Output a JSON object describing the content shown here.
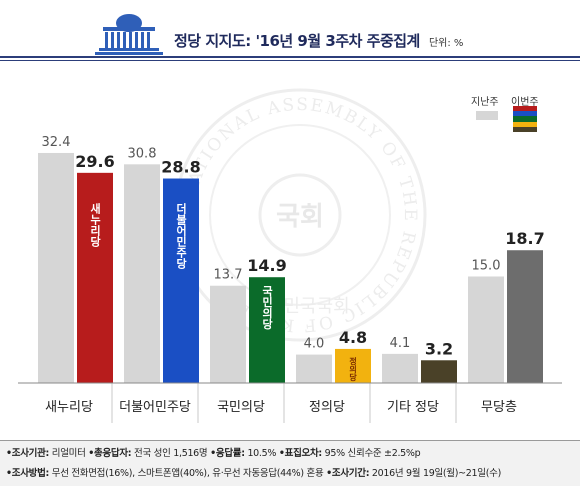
{
  "header": {
    "title": "정당 지지도: '16년 9월 3주차 주중집계",
    "unit": "단위: %"
  },
  "legend": {
    "prev_label": "지난주",
    "curr_label": "이번주"
  },
  "watermark": {
    "ring_text": "NATIONAL ASSEMBLY OF THE REPUBLIC OF KOREA",
    "center_text": "국회",
    "ring_text_kr": "대한민국국회"
  },
  "colors": {
    "prev_bar": "#d6d6d6",
    "saenuri": "#b71c1c",
    "minju": "#1a4fc4",
    "kukmin": "#0b6b2a",
    "jeongui": "#f2b20f",
    "other": "#4a4128",
    "none": "#6d6d6d"
  },
  "chart_data": {
    "type": "bar",
    "title": "정당 지지도: '16년 9월 3주차 주중집계",
    "unit": "%",
    "categories": [
      "새누리당",
      "더불어민주당",
      "국민의당",
      "정의당",
      "기타 정당",
      "무당층"
    ],
    "series": [
      {
        "name": "지난주",
        "values": [
          32.4,
          30.8,
          13.7,
          4.0,
          4.1,
          15.0
        ]
      },
      {
        "name": "이번주",
        "values": [
          29.6,
          28.8,
          14.9,
          4.8,
          3.2,
          18.7
        ]
      }
    ],
    "value_labels_prev": [
      "32.4",
      "30.8",
      "13.7",
      "4.0",
      "4.1",
      "15.0"
    ],
    "value_labels_curr": [
      "29.6",
      "28.8",
      "14.9",
      "4.8",
      "3.2",
      "18.7"
    ],
    "bar_logos": [
      "새누리당",
      "더불어민주당",
      "국민의당",
      "정의당",
      "",
      ""
    ],
    "ylim": [
      0,
      34
    ],
    "legend_position": "top-right"
  },
  "footer": {
    "row1": {
      "agency_label": "•조사기관:",
      "agency": "리얼미터",
      "respondents_label": "•총응답자:",
      "respondents": "전국 성인 1,516명",
      "response_label": "•응답률:",
      "response": "10.5%",
      "error_label": "•표집오차:",
      "error": "95% 신뢰수준 ±2.5%p"
    },
    "row2": {
      "method_label": "•조사방법:",
      "method": "무선 전화면접(16%), 스마트폰앱(40%), 유·무선 자동응답(44%) 혼용",
      "period_label": "•조사기간:",
      "period": "2016년 9월 19일(월)~21일(수)"
    }
  }
}
